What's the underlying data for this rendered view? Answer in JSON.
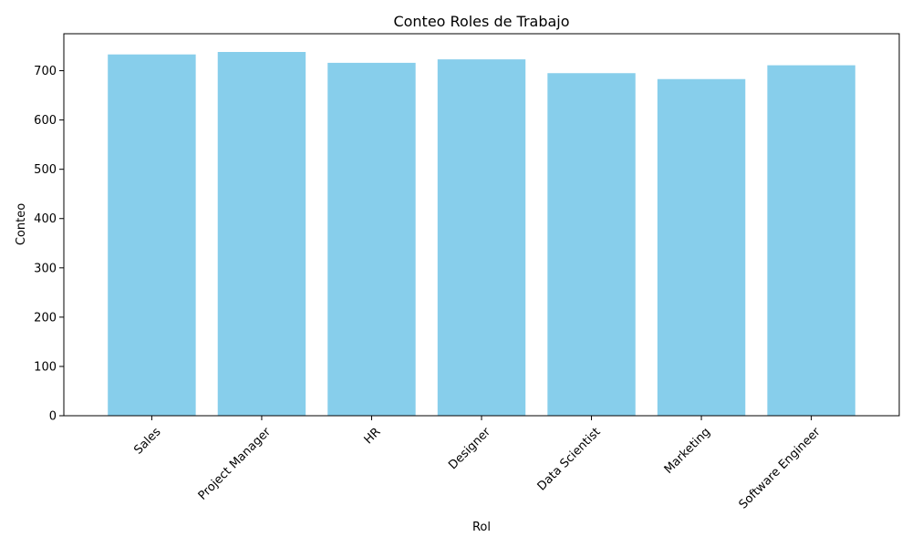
{
  "chart_data": {
    "type": "bar",
    "title": "Conteo Roles de Trabajo",
    "xlabel": "Rol",
    "ylabel": "Conteo",
    "categories": [
      "Sales",
      "Project Manager",
      "HR",
      "Designer",
      "Data Scientist",
      "Marketing",
      "Software Engineer"
    ],
    "values": [
      733,
      738,
      716,
      723,
      695,
      683,
      711
    ],
    "ylim": [
      0,
      775
    ],
    "yticks": [
      0,
      100,
      200,
      300,
      400,
      500,
      600,
      700
    ],
    "grid": false,
    "legend": "none",
    "x_tick_rotation_deg": 45,
    "bar_color": "#87CEEB"
  }
}
